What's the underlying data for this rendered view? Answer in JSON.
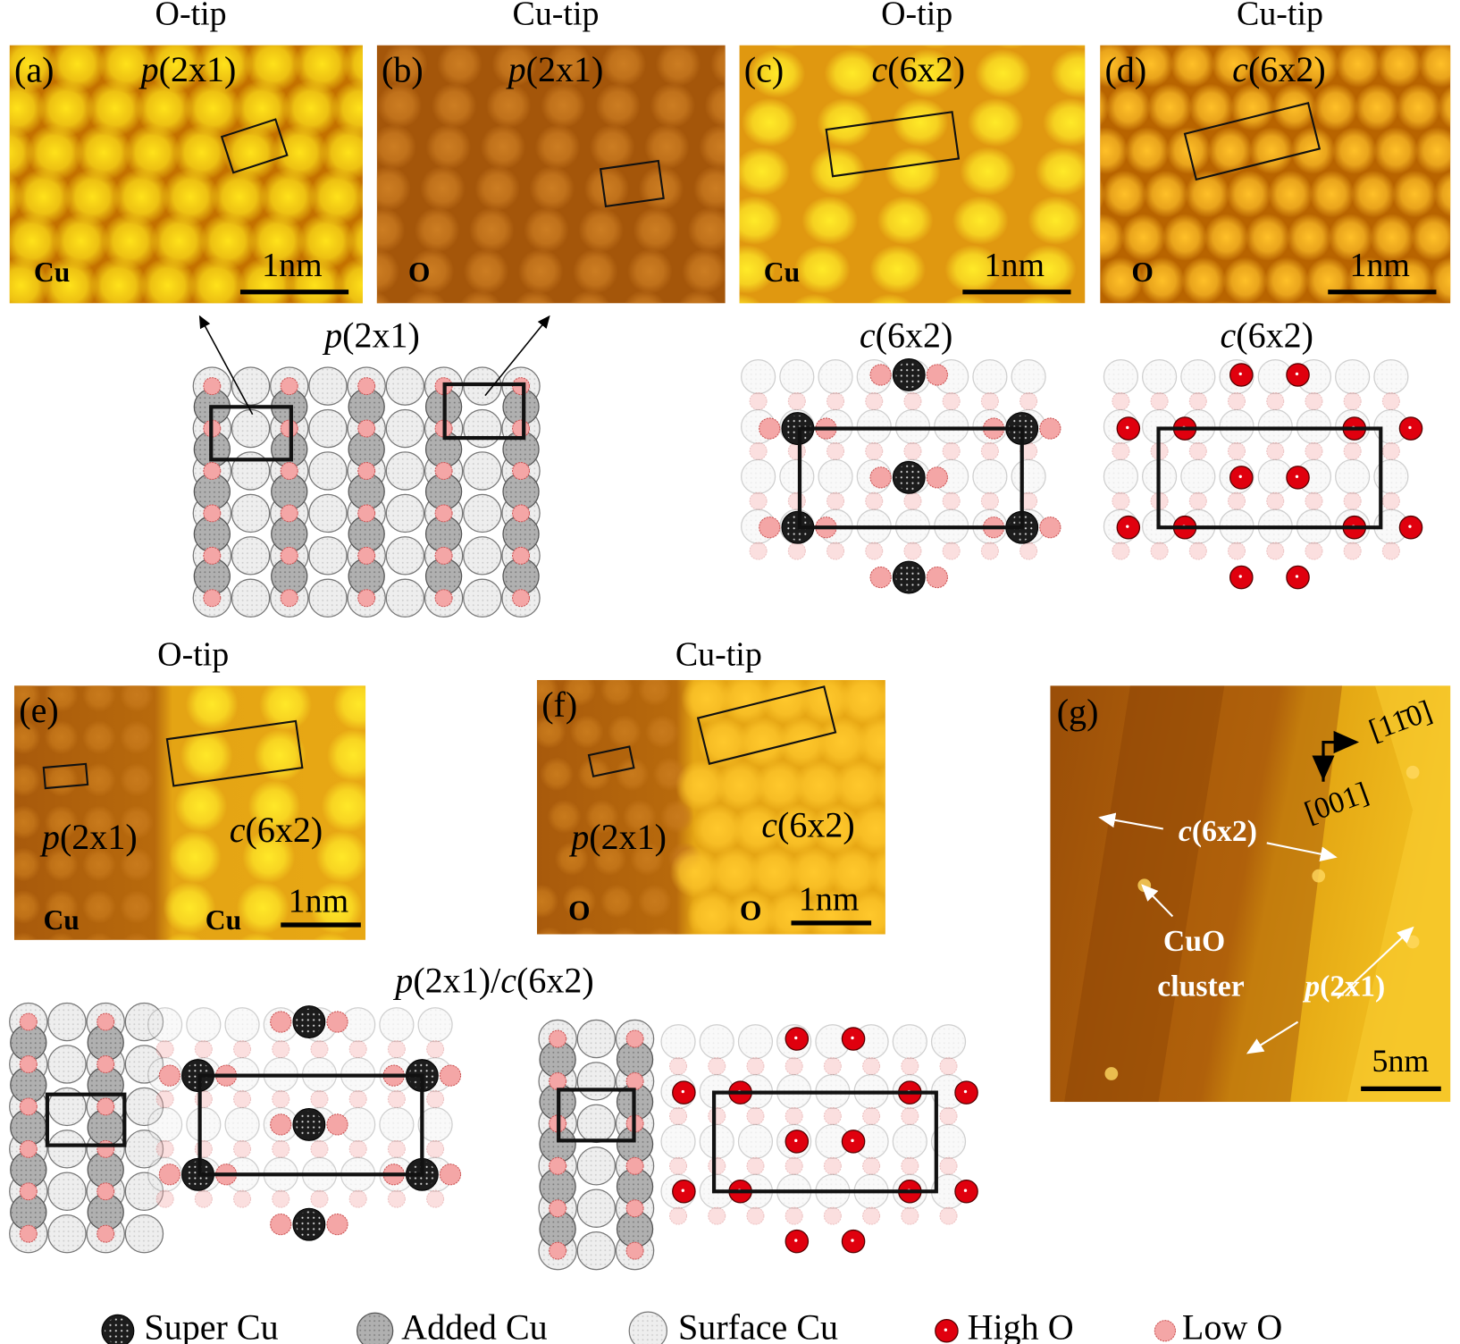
{
  "top_row": [
    {
      "tip": "O-tip",
      "label": "(a)",
      "structure": "p(2x1)",
      "atom": "Cu",
      "scale_bar": "1nm"
    },
    {
      "tip": "Cu-tip",
      "label": "(b)",
      "structure": "p(2x1)",
      "atom": "O"
    },
    {
      "tip": "O-tip",
      "label": "(c)",
      "structure": "c(6x2)",
      "atom": "Cu",
      "scale_bar": "1nm"
    },
    {
      "tip": "Cu-tip",
      "label": "(d)",
      "structure": "c(6x2)",
      "atom": "O",
      "scale_bar": "1nm"
    }
  ],
  "top_models": [
    "p(2x1)",
    "c(6x2)",
    "c(6x2)"
  ],
  "bottom_row": [
    {
      "tip": "O-tip",
      "label": "(e)",
      "structures": [
        "p(2x1)",
        "c(6x2)"
      ],
      "atoms": [
        "Cu",
        "Cu"
      ],
      "scale_bar": "1nm"
    },
    {
      "tip": "Cu-tip",
      "label": "(f)",
      "structures": [
        "p(2x1)",
        "c(6x2)"
      ],
      "atoms": [
        "O",
        "O"
      ],
      "scale_bar": "1nm"
    }
  ],
  "bottom_model_title": "p(2x1)/c(6x2)",
  "panel_g": {
    "label": "(g)",
    "directions": [
      "[11̄0]",
      "[001]"
    ],
    "c_label": "c(6x2)",
    "cluster_label": [
      "CuO",
      "cluster"
    ],
    "p_label": "p(2x1)",
    "scale_bar": "5nm"
  },
  "legend": [
    "Super Cu",
    "Added Cu",
    "Surface Cu",
    "High O",
    "Low O"
  ]
}
